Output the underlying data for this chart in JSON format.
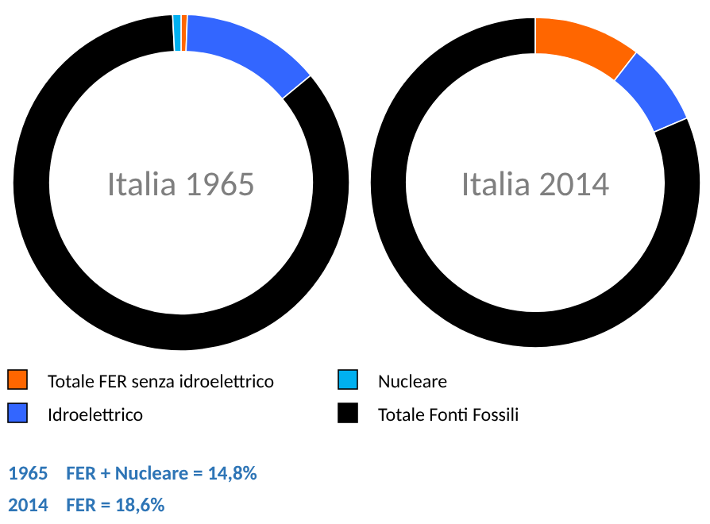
{
  "chart_data": [
    {
      "type": "donut",
      "title": "Italia 1965",
      "categories": [
        "Totale FER senza idroelettrico",
        "Idroelettrico",
        "Totale Fonti Fossili",
        "Nucleare"
      ],
      "values": [
        0.6,
        13.4,
        85.2,
        0.8
      ],
      "colors": [
        "#ff6600",
        "#3366ff",
        "#000000",
        "#00b0f0"
      ],
      "legend": "bottom",
      "annotations": [
        "1965    FER + Nucleare = 14,8%"
      ]
    },
    {
      "type": "donut",
      "title": "Italia 2014",
      "categories": [
        null,
        null,
        null,
        null
      ],
      "values": [
        10.5,
        8.1,
        81.4,
        0
      ],
      "colors": [
        "#ff6600",
        "#3366ff",
        "#000000",
        "#00b0f0"
      ],
      "annotations": [
        "2014    FER = 18,6%"
      ]
    }
  ]
}
